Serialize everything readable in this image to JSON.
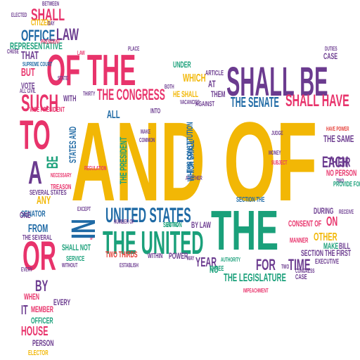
{
  "colors": {
    "yellow": "#f2b705",
    "pink": "#e8336b",
    "purple": "#6b3b8f",
    "green": "#1aa07a",
    "blue": "#1f6aa5",
    "red": "#e53a33",
    "orange": "#f08a24"
  },
  "words": [
    {
      "text": "and",
      "color": "yellow"
    },
    {
      "text": "of",
      "color": "yellow"
    },
    {
      "text": "the",
      "color": "green"
    },
    {
      "text": "of the",
      "color": "pink"
    },
    {
      "text": "shall be",
      "color": "purple"
    },
    {
      "text": "the united",
      "color": "green"
    },
    {
      "text": "to",
      "color": "pink"
    },
    {
      "text": "or",
      "color": "pink"
    },
    {
      "text": "a",
      "color": "purple"
    },
    {
      "text": "in",
      "color": "blue"
    },
    {
      "text": "united states",
      "color": "blue"
    },
    {
      "text": "shall have",
      "color": "pink"
    },
    {
      "text": "the congress",
      "color": "pink"
    },
    {
      "text": "such",
      "color": "pink"
    },
    {
      "text": "office",
      "color": "blue"
    },
    {
      "text": "law",
      "color": "purple"
    },
    {
      "text": "shall",
      "color": "pink"
    },
    {
      "text": "representative",
      "color": "green"
    },
    {
      "text": "the senate",
      "color": "blue"
    },
    {
      "text": "the president",
      "color": "green"
    },
    {
      "text": "for",
      "color": "purple"
    },
    {
      "text": "time",
      "color": "purple"
    },
    {
      "text": "each",
      "color": "purple"
    },
    {
      "text": "their",
      "color": "purple"
    },
    {
      "text": "the same",
      "color": "purple"
    },
    {
      "text": "section the first",
      "color": "purple"
    },
    {
      "text": "by",
      "color": "purple"
    },
    {
      "text": "house",
      "color": "pink"
    },
    {
      "text": "it",
      "color": "purple"
    },
    {
      "text": "on",
      "color": "pink"
    },
    {
      "text": "other",
      "color": "yellow"
    },
    {
      "text": "year",
      "color": "purple"
    },
    {
      "text": "from",
      "color": "blue"
    },
    {
      "text": "but",
      "color": "pink"
    },
    {
      "text": "vote",
      "color": "purple"
    },
    {
      "text": "that",
      "color": "purple"
    },
    {
      "text": "the legislature",
      "color": "green"
    },
    {
      "text": "shall not",
      "color": "green"
    },
    {
      "text": "two thirds",
      "color": "red"
    },
    {
      "text": "under",
      "color": "green"
    },
    {
      "text": "which",
      "color": "yellow"
    },
    {
      "text": "he shall",
      "color": "yellow"
    },
    {
      "text": "them",
      "color": "purple"
    },
    {
      "text": "no person",
      "color": "pink"
    },
    {
      "text": "during",
      "color": "purple"
    },
    {
      "text": "case",
      "color": "purple"
    },
    {
      "text": "any",
      "color": "yellow"
    },
    {
      "text": "be",
      "color": "green"
    },
    {
      "text": "with",
      "color": "purple"
    },
    {
      "text": "all",
      "color": "blue"
    },
    {
      "text": "citizen",
      "color": "yellow"
    },
    {
      "text": "senator",
      "color": "blue"
    },
    {
      "text": "elector",
      "color": "yellow"
    },
    {
      "text": "person",
      "color": "purple"
    },
    {
      "text": "member",
      "color": "pink"
    },
    {
      "text": "officer",
      "color": "green"
    },
    {
      "text": "every",
      "color": "purple"
    },
    {
      "text": "when",
      "color": "pink"
    },
    {
      "text": "one",
      "color": "purple"
    },
    {
      "text": "vice president",
      "color": "pink"
    },
    {
      "text": "supreme court",
      "color": "blue"
    },
    {
      "text": "several states",
      "color": "purple"
    },
    {
      "text": "the several",
      "color": "purple"
    },
    {
      "text": "treason",
      "color": "pink"
    },
    {
      "text": "necessary",
      "color": "pink"
    },
    {
      "text": "this constitution",
      "color": "blue"
    },
    {
      "text": "which shall",
      "color": "blue"
    },
    {
      "text": "states and",
      "color": "blue"
    },
    {
      "text": "section the",
      "color": "blue"
    },
    {
      "text": "consent of",
      "color": "pink"
    },
    {
      "text": "executive",
      "color": "purple"
    },
    {
      "text": "manner",
      "color": "pink"
    },
    {
      "text": "bill",
      "color": "purple"
    },
    {
      "text": "make",
      "color": "green"
    },
    {
      "text": "have power",
      "color": "red"
    },
    {
      "text": "no",
      "color": "green"
    },
    {
      "text": "if",
      "color": "pink"
    },
    {
      "text": "except",
      "color": "purple"
    },
    {
      "text": "power",
      "color": "purple"
    },
    {
      "text": "within",
      "color": "purple"
    },
    {
      "text": "by law",
      "color": "purple"
    },
    {
      "text": "section",
      "color": "green"
    },
    {
      "text": "service",
      "color": "green"
    },
    {
      "text": "without",
      "color": "purple"
    },
    {
      "text": "three",
      "color": "green"
    },
    {
      "text": "authority",
      "color": "green"
    },
    {
      "text": "case",
      "color": "purple"
    },
    {
      "text": "chuse",
      "color": "purple"
    },
    {
      "text": "article",
      "color": "purple"
    },
    {
      "text": "at",
      "color": "purple"
    },
    {
      "text": "president",
      "color": "pink"
    },
    {
      "text": "place",
      "color": "purple"
    },
    {
      "text": "elected",
      "color": "purple"
    },
    {
      "text": "between",
      "color": "purple"
    },
    {
      "text": "day",
      "color": "purple"
    },
    {
      "text": "duties",
      "color": "purple"
    },
    {
      "text": "into",
      "color": "purple"
    },
    {
      "text": "against",
      "color": "purple"
    },
    {
      "text": "money",
      "color": "purple"
    },
    {
      "text": "judge",
      "color": "purple"
    },
    {
      "text": "two",
      "color": "purple"
    },
    {
      "text": "receive",
      "color": "purple"
    },
    {
      "text": "impeachment",
      "color": "pink"
    },
    {
      "text": "congress",
      "color": "purple"
    },
    {
      "text": "two",
      "color": "green"
    },
    {
      "text": "provide for",
      "color": "purple"
    },
    {
      "text": "number of",
      "color": "purple"
    },
    {
      "text": "establish",
      "color": "purple"
    },
    {
      "text": "united",
      "color": "green"
    },
    {
      "text": "may",
      "color": "purple"
    },
    {
      "text": "both",
      "color": "purple"
    },
    {
      "text": "make",
      "color": "purple"
    },
    {
      "text": "law",
      "color": "pink"
    },
    {
      "text": "all civil",
      "color": "purple"
    },
    {
      "text": "thirty",
      "color": "purple"
    },
    {
      "text": "common",
      "color": "purple"
    },
    {
      "text": "vacancies",
      "color": "purple"
    },
    {
      "text": "another",
      "color": "purple"
    },
    {
      "text": "every",
      "color": "purple"
    },
    {
      "text": "regulation",
      "color": "pink"
    },
    {
      "text": "state",
      "color": "purple"
    },
    {
      "text": "subject",
      "color": "pink"
    }
  ]
}
